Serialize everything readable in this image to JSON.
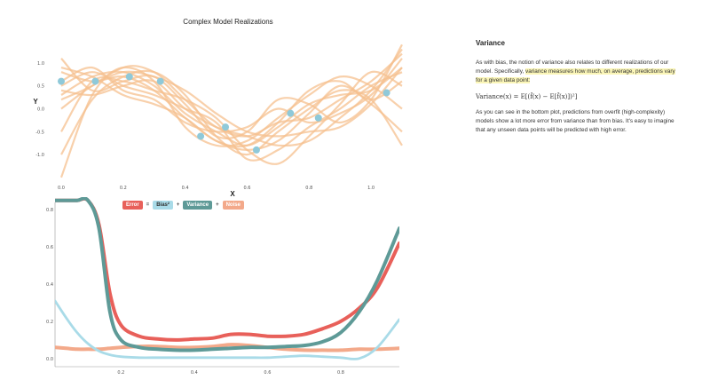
{
  "chart_data": [
    {
      "type": "line",
      "title": "Complex Model Realizations",
      "xlabel": "X",
      "ylabel": "Y",
      "xlim": [
        -0.02,
        1.12
      ],
      "ylim": [
        -1.6,
        1.6
      ],
      "x_ticks": [
        0.0,
        0.2,
        0.4,
        0.6,
        0.8,
        1.0
      ],
      "y_ticks": [
        -1.0,
        -0.5,
        0.0,
        0.5,
        1.0
      ],
      "x_tick_labels": [
        "0.0",
        "0.2",
        "0.4",
        "0.6",
        "0.8",
        "1.0"
      ],
      "y_tick_labels": [
        "-1.0",
        "-0.5",
        "0.0",
        "0.5",
        "1.0"
      ],
      "points": {
        "x": [
          0.0,
          0.11,
          0.22,
          0.32,
          0.45,
          0.53,
          0.63,
          0.74,
          0.83,
          1.05
        ],
        "y": [
          0.6,
          0.6,
          0.7,
          0.6,
          -0.6,
          -0.4,
          -0.9,
          -0.1,
          -0.2,
          0.35
        ]
      },
      "series": [
        {
          "x": [
            0,
            0.1,
            0.2,
            0.3,
            0.4,
            0.5,
            0.6,
            0.7,
            0.8,
            0.9,
            1.0,
            1.1
          ],
          "values": [
            0.3,
            0.7,
            0.8,
            0.5,
            -0.1,
            -0.5,
            -0.8,
            -0.4,
            0.1,
            0.3,
            0.4,
            0.9
          ]
        },
        {
          "x": [
            0,
            0.1,
            0.2,
            0.3,
            0.4,
            0.5,
            0.6,
            0.7,
            0.8,
            0.9,
            1.0,
            1.1
          ],
          "values": [
            -1.5,
            0.3,
            0.9,
            0.8,
            0.2,
            -0.4,
            -0.6,
            -0.3,
            -0.2,
            0.2,
            0.6,
            1.2
          ]
        },
        {
          "x": [
            0,
            0.1,
            0.2,
            0.3,
            0.4,
            0.5,
            0.6,
            0.7,
            0.8,
            0.9,
            1.0,
            1.1
          ],
          "values": [
            0.8,
            0.6,
            0.7,
            0.4,
            -0.2,
            -0.7,
            -0.9,
            -0.7,
            -0.1,
            0.5,
            0.1,
            -0.5
          ]
        },
        {
          "x": [
            0,
            0.1,
            0.2,
            0.3,
            0.4,
            0.5,
            0.6,
            0.7,
            0.8,
            0.9,
            1.0,
            1.1
          ],
          "values": [
            0.5,
            0.8,
            0.5,
            0.3,
            0.0,
            -0.3,
            -1.1,
            -0.9,
            -0.4,
            0.0,
            0.5,
            0.8
          ]
        },
        {
          "x": [
            0,
            0.1,
            0.2,
            0.3,
            0.4,
            0.5,
            0.6,
            0.7,
            0.8,
            0.9,
            1.0,
            1.1
          ],
          "values": [
            1.1,
            0.4,
            0.6,
            0.7,
            0.1,
            -0.6,
            -0.5,
            0.2,
            0.1,
            -0.3,
            0.2,
            1.4
          ]
        },
        {
          "x": [
            0,
            0.1,
            0.2,
            0.3,
            0.4,
            0.5,
            0.6,
            0.7,
            0.8,
            0.9,
            1.0,
            1.1
          ],
          "values": [
            0.2,
            0.5,
            0.9,
            0.6,
            -0.4,
            -0.8,
            -0.7,
            -0.2,
            0.3,
            0.7,
            0.5,
            0.0
          ]
        },
        {
          "x": [
            0,
            0.1,
            0.2,
            0.3,
            0.4,
            0.5,
            0.6,
            0.7,
            0.8,
            0.9,
            1.0,
            1.1
          ],
          "values": [
            -0.5,
            0.6,
            0.6,
            0.4,
            0.2,
            -0.2,
            -0.9,
            -1.2,
            -0.6,
            0.1,
            0.8,
            0.5
          ]
        },
        {
          "x": [
            0,
            0.1,
            0.2,
            0.3,
            0.4,
            0.5,
            0.6,
            0.7,
            0.8,
            0.9,
            1.0,
            1.1
          ],
          "values": [
            0.6,
            0.9,
            0.4,
            0.2,
            -0.3,
            -0.5,
            -0.4,
            0.0,
            -0.3,
            -0.1,
            0.3,
            1.1
          ]
        },
        {
          "x": [
            0,
            0.1,
            0.2,
            0.3,
            0.4,
            0.5,
            0.6,
            0.7,
            0.8,
            0.9,
            1.0,
            1.1
          ],
          "values": [
            -1.0,
            0.2,
            0.7,
            0.8,
            0.3,
            -0.6,
            -1.0,
            -0.5,
            0.0,
            0.4,
            0.2,
            -0.8
          ]
        },
        {
          "x": [
            0,
            0.1,
            0.2,
            0.3,
            0.4,
            0.5,
            0.6,
            0.7,
            0.8,
            0.9,
            1.0,
            1.1
          ],
          "values": [
            0.4,
            0.3,
            0.5,
            0.6,
            0.0,
            -0.4,
            -0.6,
            -0.8,
            -0.7,
            -0.2,
            0.4,
            1.3
          ]
        },
        {
          "x": [
            0,
            0.1,
            0.2,
            0.3,
            0.4,
            0.5,
            0.6,
            0.7,
            0.8,
            0.9,
            1.0,
            1.1
          ],
          "values": [
            0.9,
            0.7,
            0.3,
            0.1,
            -0.2,
            -0.7,
            -0.8,
            -0.3,
            0.4,
            0.6,
            0.2,
            0.6
          ]
        },
        {
          "x": [
            0,
            0.1,
            0.2,
            0.3,
            0.4,
            0.5,
            0.6,
            0.7,
            0.8,
            0.9,
            1.0,
            1.1
          ],
          "values": [
            0.0,
            0.5,
            0.8,
            0.7,
            0.4,
            -0.1,
            -0.5,
            -0.6,
            -0.5,
            -0.4,
            0.1,
            0.9
          ]
        }
      ],
      "line_color": "#f5c08f",
      "point_color": "#8fc9d9"
    },
    {
      "type": "line",
      "title": "",
      "xlabel": "",
      "ylabel": "",
      "xlim": [
        0.02,
        0.96
      ],
      "ylim": [
        -0.02,
        0.82
      ],
      "x_ticks": [
        0.2,
        0.4,
        0.6,
        0.8
      ],
      "y_ticks": [
        0.0,
        0.2,
        0.4,
        0.6,
        0.8
      ],
      "x_tick_labels": [
        "0.2",
        "0.4",
        "0.6",
        "0.8"
      ],
      "y_tick_labels": [
        "0.0",
        "0.2",
        "0.4",
        "0.6",
        "0.8"
      ],
      "x": [
        0.02,
        0.05,
        0.08,
        0.11,
        0.14,
        0.17,
        0.2,
        0.25,
        0.3,
        0.35,
        0.4,
        0.45,
        0.5,
        0.55,
        0.6,
        0.65,
        0.7,
        0.75,
        0.8,
        0.85,
        0.9,
        0.96
      ],
      "series": [
        {
          "name": "Error",
          "color": "#e8605a",
          "values": [
            0.85,
            0.85,
            0.85,
            0.85,
            0.72,
            0.35,
            0.18,
            0.12,
            0.105,
            0.1,
            0.105,
            0.11,
            0.13,
            0.13,
            0.12,
            0.12,
            0.13,
            0.16,
            0.2,
            0.27,
            0.38,
            0.62
          ]
        },
        {
          "name": "Bias²",
          "color": "#a9dbe8",
          "values": [
            0.31,
            0.22,
            0.14,
            0.08,
            0.04,
            0.02,
            0.01,
            0.005,
            0.005,
            0.005,
            0.005,
            0.005,
            0.005,
            0.005,
            0.005,
            0.01,
            0.015,
            0.01,
            0.005,
            0.0,
            0.06,
            0.21
          ]
        },
        {
          "name": "Variance",
          "color": "#5e9a97",
          "values": [
            0.85,
            0.85,
            0.85,
            0.85,
            0.7,
            0.25,
            0.1,
            0.06,
            0.05,
            0.045,
            0.045,
            0.05,
            0.055,
            0.06,
            0.06,
            0.065,
            0.07,
            0.09,
            0.14,
            0.25,
            0.42,
            0.7
          ]
        },
        {
          "name": "Noise",
          "color": "#f3a98a",
          "values": [
            0.06,
            0.055,
            0.05,
            0.05,
            0.05,
            0.055,
            0.06,
            0.065,
            0.065,
            0.06,
            0.06,
            0.065,
            0.075,
            0.07,
            0.06,
            0.05,
            0.045,
            0.045,
            0.045,
            0.05,
            0.05,
            0.055
          ]
        }
      ],
      "legend": {
        "placement": "top-left",
        "items": [
          {
            "label": "Error",
            "color": "#e8605a"
          },
          {
            "op": "="
          },
          {
            "label": "Bias²",
            "color": "#a9dbe8"
          },
          {
            "op": "+"
          },
          {
            "label": "Variance",
            "color": "#5e9a97"
          },
          {
            "op": "+"
          },
          {
            "label": "Noise",
            "color": "#f3a98a"
          }
        ]
      }
    }
  ],
  "text_panel": {
    "heading": "Variance",
    "p1_a": "As with bias, the notion of variance also relates to different realizations of our model. Specifically, ",
    "p1_hl": "variance measures how much, on average, predictions vary for a given data point:",
    "formula": "Variance(x) = E[(f̂(x) − E[f̂(x)])²]",
    "p2": "As you can see in the bottom plot, predictions from overfit (high-complexity) models show a lot more error from variance than from bias. It's easy to imagine that any unseen data points will be predicted with high error."
  }
}
